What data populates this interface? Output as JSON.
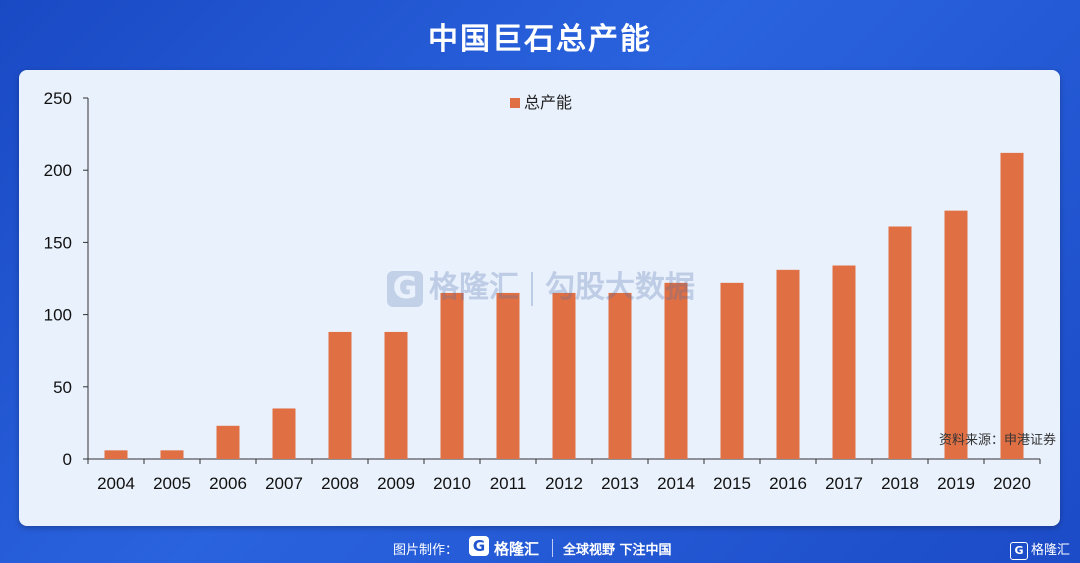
{
  "header": {
    "title": "中国巨石总产能"
  },
  "source_note": "资料来源：申港证券",
  "watermark": {
    "brand": "格隆汇",
    "brand_sub": "勾股大数据",
    "logo_letter": "G"
  },
  "footer": {
    "credit_label": "图片制作：",
    "logo_letter": "G",
    "brand": "格隆汇",
    "slogan": "全球视野 下注中国",
    "corner_brand": "格隆汇"
  },
  "colors": {
    "bar": "#e07044",
    "panel": "#e9f1fc",
    "background": "#2153cf"
  },
  "chart_data": {
    "type": "bar",
    "categories": [
      "2004",
      "2005",
      "2006",
      "2007",
      "2008",
      "2009",
      "2010",
      "2011",
      "2012",
      "2013",
      "2014",
      "2015",
      "2016",
      "2017",
      "2018",
      "2019",
      "2020"
    ],
    "series": [
      {
        "name": "总产能",
        "values": [
          6,
          6,
          23,
          35,
          88,
          88,
          115,
          115,
          115,
          115,
          122,
          122,
          131,
          134,
          161,
          172,
          212
        ]
      }
    ],
    "ylim": [
      0,
      250
    ],
    "yticks": [
      0,
      50,
      100,
      150,
      200,
      250
    ],
    "legend_position": "top-center",
    "grid": false
  }
}
